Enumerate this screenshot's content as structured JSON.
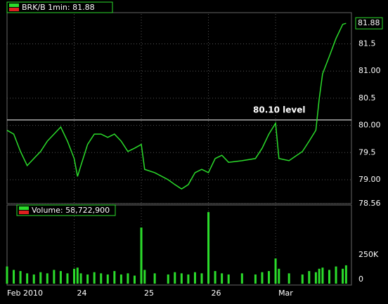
{
  "chart_data": [
    {
      "type": "line",
      "title": "BRK/B 1min: 81.88",
      "last_price": 81.88,
      "annotation": {
        "text": "80.10 level",
        "value": 80.1
      },
      "xlim": [
        0,
        5.13
      ],
      "xticks": [
        {
          "value": 0,
          "label": "Feb 2010"
        },
        {
          "value": 1,
          "label": "24"
        },
        {
          "value": 2,
          "label": "25"
        },
        {
          "value": 3,
          "label": "26"
        },
        {
          "value": 4,
          "label": "Mar"
        }
      ],
      "ylim": [
        78.56,
        82.05
      ],
      "yticks": [
        78.56,
        {
          "value": 79,
          "label": "79.00"
        },
        79.5,
        {
          "value": 80,
          "label": "80.00"
        },
        80.5,
        {
          "value": 81,
          "label": "81.00"
        },
        81.5
      ],
      "grid": true,
      "series": [
        {
          "name": "BRK/B",
          "color": "#2bdc2b",
          "x": [
            0,
            0.1,
            0.2,
            0.3,
            0.4,
            0.5,
            0.6,
            0.7,
            0.8,
            0.9,
            1.0,
            1.05,
            1.1,
            1.2,
            1.3,
            1.4,
            1.5,
            1.6,
            1.7,
            1.8,
            1.9,
            2.0,
            2.05,
            2.2,
            2.4,
            2.5,
            2.6,
            2.7,
            2.8,
            2.9,
            3.0,
            3.1,
            3.2,
            3.3,
            3.5,
            3.7,
            3.8,
            3.9,
            4.0,
            4.05,
            4.2,
            4.4,
            4.5,
            4.6,
            4.65,
            4.7,
            4.8,
            4.9,
            5.0,
            5.05
          ],
          "values": [
            79.91,
            79.84,
            79.52,
            79.26,
            79.39,
            79.52,
            79.71,
            79.84,
            79.97,
            79.71,
            79.39,
            79.06,
            79.26,
            79.65,
            79.84,
            79.84,
            79.78,
            79.84,
            79.71,
            79.52,
            79.58,
            79.65,
            79.19,
            79.13,
            79.0,
            78.91,
            78.83,
            78.91,
            79.13,
            79.19,
            79.13,
            79.39,
            79.45,
            79.32,
            79.35,
            79.39,
            79.58,
            79.84,
            80.04,
            79.39,
            79.35,
            79.52,
            79.71,
            79.91,
            80.49,
            80.95,
            81.27,
            81.6,
            81.86,
            81.88
          ]
        }
      ]
    },
    {
      "type": "bar",
      "title": "Volume: 58,722,900",
      "xlim": [
        0,
        5.13
      ],
      "ylim": [
        0,
        650000
      ],
      "yticks": [
        0,
        {
          "value": 250000,
          "label": "250K"
        }
      ],
      "series": [
        {
          "name": "Volume",
          "color": "#2bdc2b",
          "x": [
            0,
            0.1,
            0.2,
            0.3,
            0.4,
            0.5,
            0.6,
            0.7,
            0.8,
            0.9,
            1.0,
            1.05,
            1.1,
            1.2,
            1.3,
            1.4,
            1.5,
            1.6,
            1.7,
            1.8,
            1.9,
            2.0,
            2.05,
            2.2,
            2.4,
            2.5,
            2.6,
            2.7,
            2.8,
            2.9,
            3.0,
            3.1,
            3.2,
            3.3,
            3.5,
            3.7,
            3.8,
            3.9,
            4.0,
            4.05,
            4.2,
            4.4,
            4.5,
            4.6,
            4.65,
            4.7,
            4.8,
            4.9,
            5.0,
            5.05
          ],
          "values": [
            150000,
            120000,
            110000,
            90000,
            80000,
            100000,
            90000,
            120000,
            110000,
            90000,
            130000,
            140000,
            90000,
            80000,
            100000,
            90000,
            80000,
            110000,
            80000,
            90000,
            70000,
            490000,
            120000,
            90000,
            80000,
            100000,
            90000,
            80000,
            100000,
            90000,
            625000,
            110000,
            90000,
            80000,
            90000,
            80000,
            100000,
            110000,
            220000,
            130000,
            90000,
            80000,
            110000,
            100000,
            130000,
            140000,
            120000,
            150000,
            130000,
            160000
          ]
        }
      ]
    }
  ]
}
